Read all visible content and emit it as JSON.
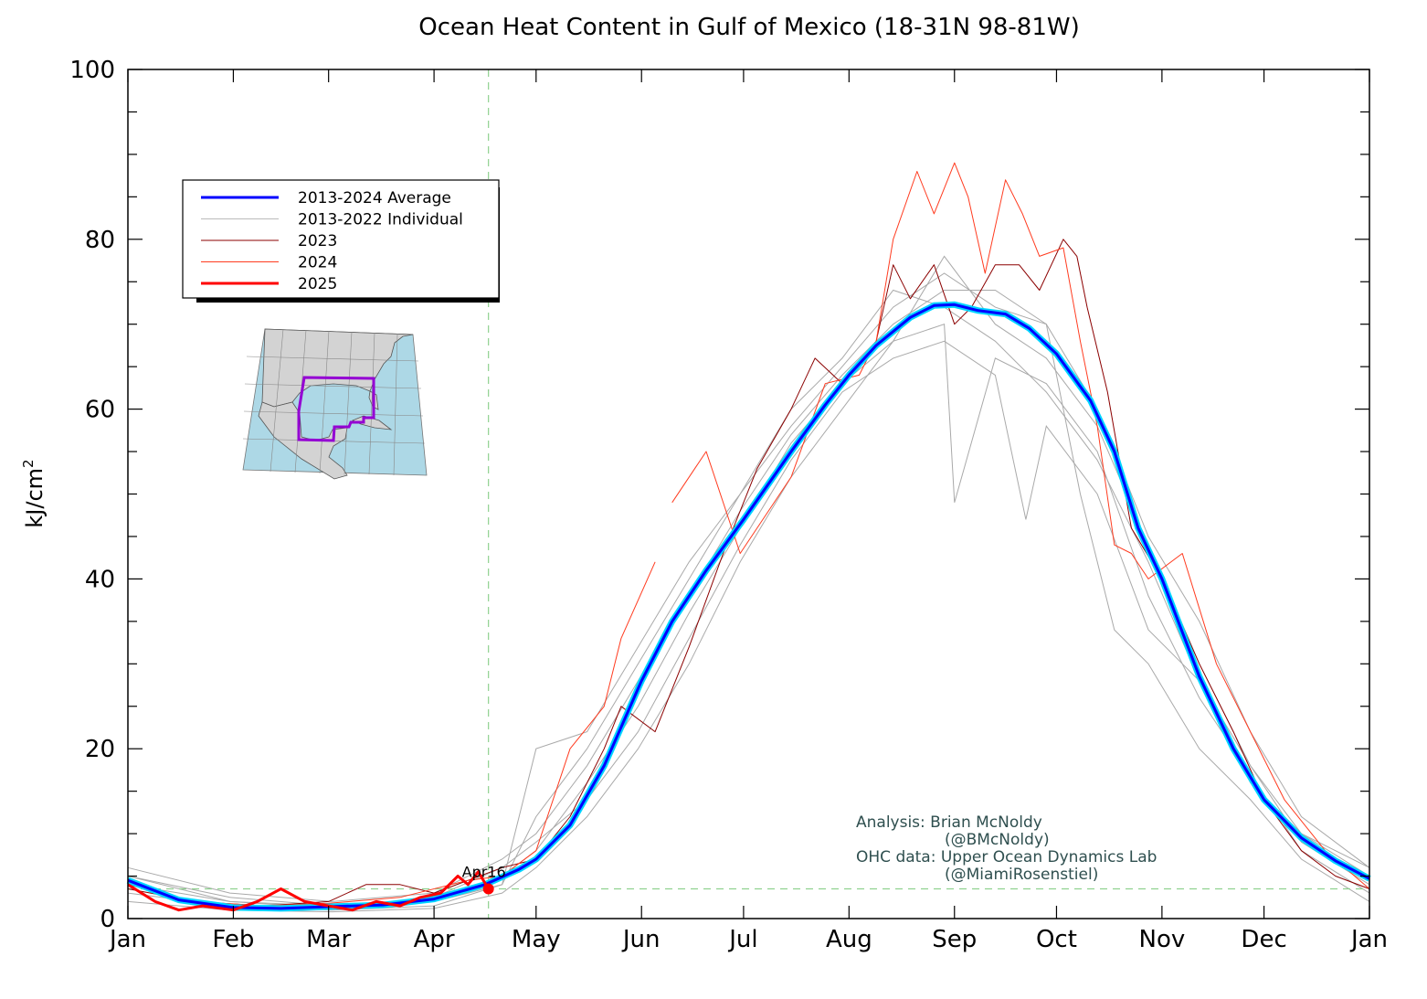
{
  "chart_data": {
    "type": "line",
    "title": "Ocean Heat Content in Gulf of Mexico (18-31N 98-81W)",
    "xlabel": "",
    "ylabel": "kJ/cm",
    "ylabel_superscript": "2",
    "xlim": [
      0,
      365
    ],
    "ylim": [
      0,
      100
    ],
    "x_ticks": [
      {
        "label": "Jan",
        "day": 0
      },
      {
        "label": "Feb",
        "day": 31
      },
      {
        "label": "Mar",
        "day": 59
      },
      {
        "label": "Apr",
        "day": 90
      },
      {
        "label": "May",
        "day": 120
      },
      {
        "label": "Jun",
        "day": 151
      },
      {
        "label": "Jul",
        "day": 181
      },
      {
        "label": "Aug",
        "day": 212
      },
      {
        "label": "Sep",
        "day": 243
      },
      {
        "label": "Oct",
        "day": 273
      },
      {
        "label": "Nov",
        "day": 304
      },
      {
        "label": "Dec",
        "day": 334
      },
      {
        "label": "Jan",
        "day": 365
      }
    ],
    "y_ticks": [
      0,
      20,
      40,
      60,
      80,
      100
    ],
    "grid": false,
    "legend_position": "upper-left",
    "legend": [
      {
        "label": "2013-2024 Average",
        "color": "#0000ff",
        "width": 3
      },
      {
        "label": "2013-2022 Individual",
        "color": "#bbbbbb",
        "width": 1
      },
      {
        "label": "2023",
        "color": "#8b0000",
        "width": 1
      },
      {
        "label": "2024",
        "color": "#ff3b1f",
        "width": 1
      },
      {
        "label": "2025",
        "color": "#ff0000",
        "width": 3
      }
    ],
    "series": [
      {
        "name": "2013-2024 Average",
        "color": "#0000ff",
        "x": [
          0,
          15,
          31,
          45,
          59,
          75,
          90,
          105,
          115,
          120,
          130,
          140,
          151,
          160,
          170,
          181,
          195,
          205,
          212,
          220,
          230,
          237,
          243,
          250,
          258,
          265,
          273,
          283,
          290,
          297,
          304,
          315,
          325,
          334,
          345,
          355,
          365
        ],
        "y": [
          4.5,
          2.2,
          1.3,
          1.2,
          1.4,
          1.6,
          2.3,
          4.0,
          5.8,
          7.0,
          11.0,
          18.0,
          28.0,
          35.0,
          41.0,
          47.0,
          55.0,
          60.5,
          64.0,
          67.5,
          70.8,
          72.2,
          72.3,
          71.6,
          71.2,
          69.5,
          66.5,
          61.0,
          55.0,
          46.0,
          40.0,
          28.5,
          20.0,
          14.0,
          9.5,
          6.8,
          4.7
        ]
      },
      {
        "name": "2023",
        "color": "#8b0000",
        "x": [
          0,
          20,
          40,
          59,
          70,
          80,
          90,
          100,
          110,
          120,
          130,
          140,
          145,
          155,
          165,
          175,
          185,
          195,
          202,
          210,
          220,
          225,
          230,
          237,
          243,
          248,
          255,
          262,
          268,
          275,
          279,
          282,
          288,
          295,
          304,
          315,
          325,
          334,
          345,
          355,
          365
        ],
        "y": [
          3.5,
          2.0,
          1.5,
          2.0,
          4.0,
          4.0,
          3.0,
          4.5,
          6.0,
          7.0,
          12.0,
          20.0,
          25.0,
          22.0,
          32.0,
          43.0,
          53.0,
          60.0,
          66.0,
          63.0,
          68.0,
          77.0,
          73.0,
          77.0,
          70.0,
          72.0,
          77.0,
          77.0,
          74.0,
          80.0,
          78.0,
          72.0,
          62.0,
          46.0,
          40.0,
          30.0,
          22.0,
          14.0,
          8.0,
          5.0,
          3.5
        ]
      },
      {
        "name": "2024",
        "color": "#ff3b1f",
        "x": [
          0,
          20,
          40,
          59,
          80,
          100,
          110,
          120,
          130,
          140,
          145,
          155,
          157,
          160,
          170,
          180,
          195,
          205,
          215,
          220,
          225,
          232,
          237,
          243,
          247,
          252,
          258,
          263,
          268,
          275,
          280,
          285,
          290,
          295,
          300,
          310,
          320,
          330,
          340,
          352,
          365
        ],
        "y": [
          4.0,
          2.0,
          1.5,
          1.8,
          2.5,
          4.5,
          5.0,
          8.0,
          20.0,
          25.0,
          33.0,
          42.0,
          null,
          49.0,
          55.0,
          43.0,
          52.0,
          63.0,
          64.0,
          68.0,
          80.0,
          88.0,
          83.0,
          89.0,
          85.0,
          76.0,
          87.0,
          83.0,
          78.0,
          79.0,
          68.0,
          58.0,
          44.0,
          43.0,
          40.0,
          43.0,
          30.0,
          22.0,
          14.0,
          8.0,
          3.5
        ]
      },
      {
        "name": "2025",
        "color": "#ff0000",
        "x": [
          0,
          8,
          15,
          22,
          31,
          38,
          45,
          52,
          59,
          66,
          73,
          80,
          86,
          92,
          97,
          100,
          103,
          106
        ],
        "y": [
          4.0,
          2.0,
          1.0,
          1.5,
          1.0,
          2.0,
          3.5,
          2.0,
          1.5,
          1.0,
          2.0,
          1.5,
          2.5,
          3.0,
          5.0,
          4.0,
          5.5,
          3.5
        ]
      }
    ],
    "individual_years": [
      {
        "x": [
          0,
          30,
          60,
          90,
          110,
          120,
          135,
          150,
          165,
          180,
          195,
          210,
          225,
          240,
          243,
          255,
          270,
          285,
          300,
          315,
          330,
          345,
          365
        ],
        "y": [
          5,
          2,
          1.5,
          2,
          5,
          8,
          16,
          25,
          36,
          46,
          56,
          63,
          68,
          70,
          49,
          66,
          63,
          55,
          38,
          26,
          17,
          8,
          3
        ]
      },
      {
        "x": [
          0,
          30,
          60,
          90,
          110,
          120,
          135,
          150,
          165,
          180,
          195,
          210,
          225,
          240,
          255,
          270,
          285,
          300,
          315,
          330,
          345,
          365
        ],
        "y": [
          3,
          1.5,
          1,
          1.5,
          4,
          12,
          20,
          30,
          40,
          50,
          58,
          65,
          72,
          76,
          72,
          70,
          60,
          45,
          35,
          22,
          12,
          6
        ]
      },
      {
        "x": [
          0,
          30,
          60,
          90,
          110,
          120,
          135,
          150,
          165,
          180,
          195,
          210,
          225,
          240,
          255,
          264,
          270,
          285,
          300,
          315,
          330,
          345,
          365
        ],
        "y": [
          4,
          2,
          1.2,
          2.5,
          6,
          9,
          14,
          22,
          33,
          44,
          54,
          62,
          66,
          68,
          64,
          47,
          58,
          50,
          34,
          28,
          18,
          10,
          5
        ]
      },
      {
        "x": [
          0,
          30,
          60,
          90,
          110,
          120,
          135,
          150,
          165,
          180,
          195,
          210,
          225,
          240,
          255,
          270,
          280,
          290,
          300,
          315,
          330,
          345,
          365
        ],
        "y": [
          6,
          3,
          2,
          3,
          7,
          10,
          18,
          28,
          38,
          48,
          57,
          64,
          70,
          74,
          74,
          70,
          50,
          34,
          30,
          20,
          14,
          7,
          2
        ]
      },
      {
        "x": [
          0,
          30,
          60,
          90,
          110,
          120,
          135,
          150,
          165,
          180,
          195,
          210,
          225,
          240,
          255,
          270,
          285,
          300,
          315,
          330,
          345,
          365
        ],
        "y": [
          2,
          1,
          0.8,
          1.2,
          3,
          6,
          12,
          20,
          30,
          42,
          52,
          60,
          68,
          78,
          70,
          66,
          58,
          44,
          30,
          18,
          9,
          4
        ]
      },
      {
        "x": [
          0,
          30,
          60,
          90,
          110,
          120,
          135,
          150,
          165,
          180,
          195,
          210,
          225,
          240,
          255,
          270,
          285,
          300,
          315,
          330,
          345,
          365
        ],
        "y": [
          5,
          2.5,
          1.5,
          2,
          4,
          20,
          22,
          32,
          42,
          50,
          60,
          66,
          74,
          72,
          68,
          62,
          54,
          42,
          28,
          16,
          10,
          6
        ]
      }
    ]
  },
  "annotations": {
    "date_marker_label": "Apr16",
    "date_marker_day": 106,
    "date_marker_value": 3.5,
    "credit_lines": [
      "Analysis: Brian McNoldy",
      "(@BMcNoldy)",
      "OHC data: Upper Ocean Dynamics Lab",
      "(@MiamiRosenstiel)"
    ]
  },
  "inset_map": {
    "land_color": "#d3d3d3",
    "ocean_color": "#add8e6",
    "box_color": "#9400d3"
  }
}
